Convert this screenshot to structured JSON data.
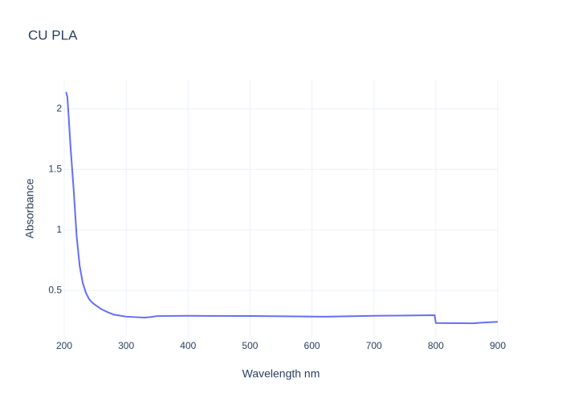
{
  "chart_data": {
    "type": "line",
    "title": "CU PLA",
    "xlabel": "Wavelength nm",
    "ylabel": "Absorbance",
    "x": [
      203,
      205,
      207,
      210,
      215,
      220,
      225,
      230,
      235,
      240,
      245,
      250,
      260,
      270,
      280,
      300,
      330,
      340,
      350,
      400,
      500,
      620,
      700,
      798,
      800,
      860,
      880,
      900
    ],
    "series": [
      {
        "name": "Absorbance",
        "color": "#636efa",
        "values": [
          2.14,
          2.1,
          1.95,
          1.7,
          1.35,
          0.95,
          0.7,
          0.56,
          0.48,
          0.43,
          0.4,
          0.38,
          0.345,
          0.32,
          0.3,
          0.283,
          0.275,
          0.28,
          0.288,
          0.29,
          0.288,
          0.283,
          0.29,
          0.295,
          0.23,
          0.228,
          0.235,
          0.24
        ]
      }
    ],
    "xlim": [
      200,
      900
    ],
    "xticks": [
      200,
      300,
      400,
      500,
      600,
      700,
      800,
      900
    ],
    "ylim": [
      0.116,
      2.238
    ],
    "yticks": [
      0.5,
      1,
      1.5,
      2
    ],
    "grid": true
  }
}
